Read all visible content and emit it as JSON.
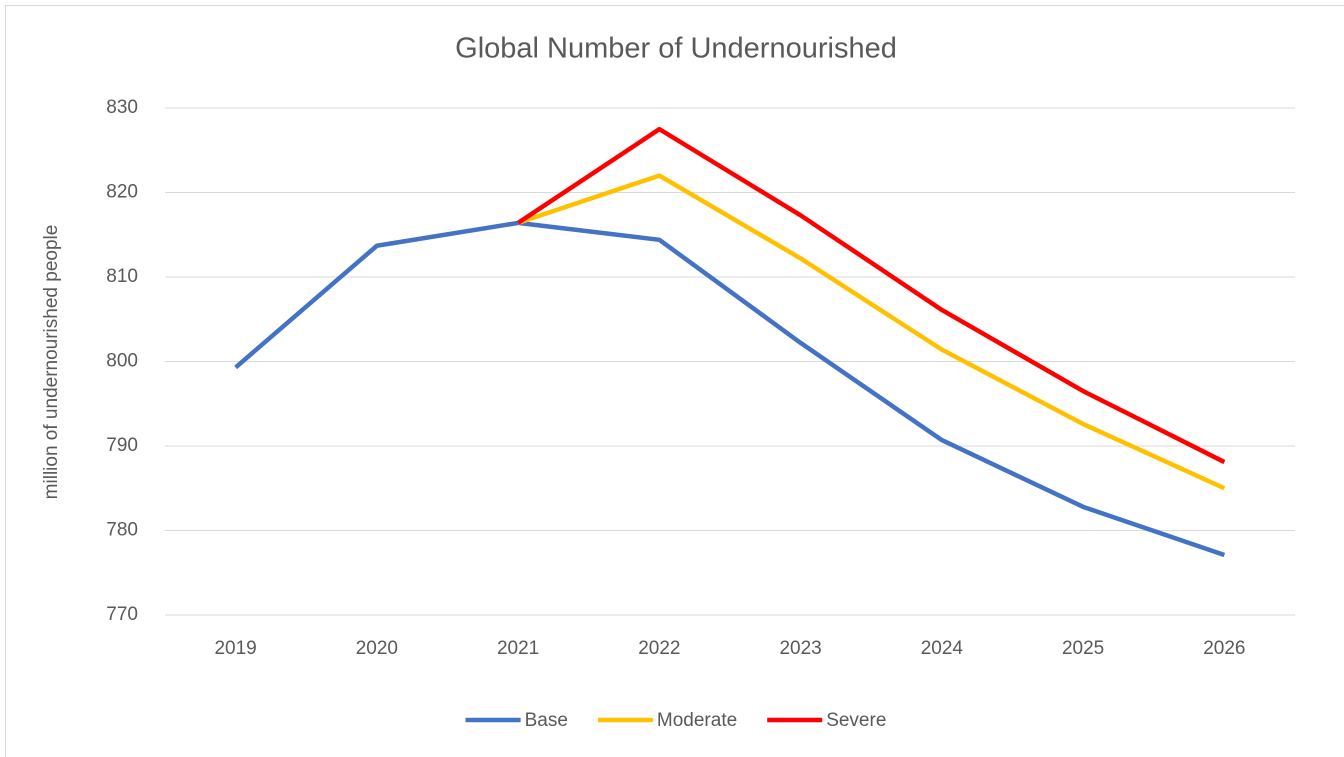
{
  "chart_data": {
    "type": "line",
    "title": "Global Number of Undernourished",
    "y_label": "million of undernourished people",
    "categories": [
      "2019",
      "2020",
      "2021",
      "2022",
      "2023",
      "2024",
      "2025",
      "2026"
    ],
    "series": [
      {
        "name": "Base",
        "color": "#4472c4",
        "values": [
          799.3,
          813.7,
          816.4,
          814.4,
          802.2,
          790.7,
          782.8,
          777.1
        ]
      },
      {
        "name": "Moderate",
        "color": "#ffc000",
        "values": [
          null,
          null,
          816.4,
          822.0,
          812.2,
          801.4,
          792.6,
          785.0
        ]
      },
      {
        "name": "Severe",
        "color": "#ff0000",
        "values": [
          null,
          null,
          816.4,
          827.5,
          817.3,
          806.1,
          796.5,
          788.1
        ]
      }
    ],
    "ylim": [
      770,
      830
    ],
    "yticks": [
      770,
      780,
      790,
      800,
      810,
      820,
      830
    ],
    "grid": true,
    "legend": "bottom"
  }
}
